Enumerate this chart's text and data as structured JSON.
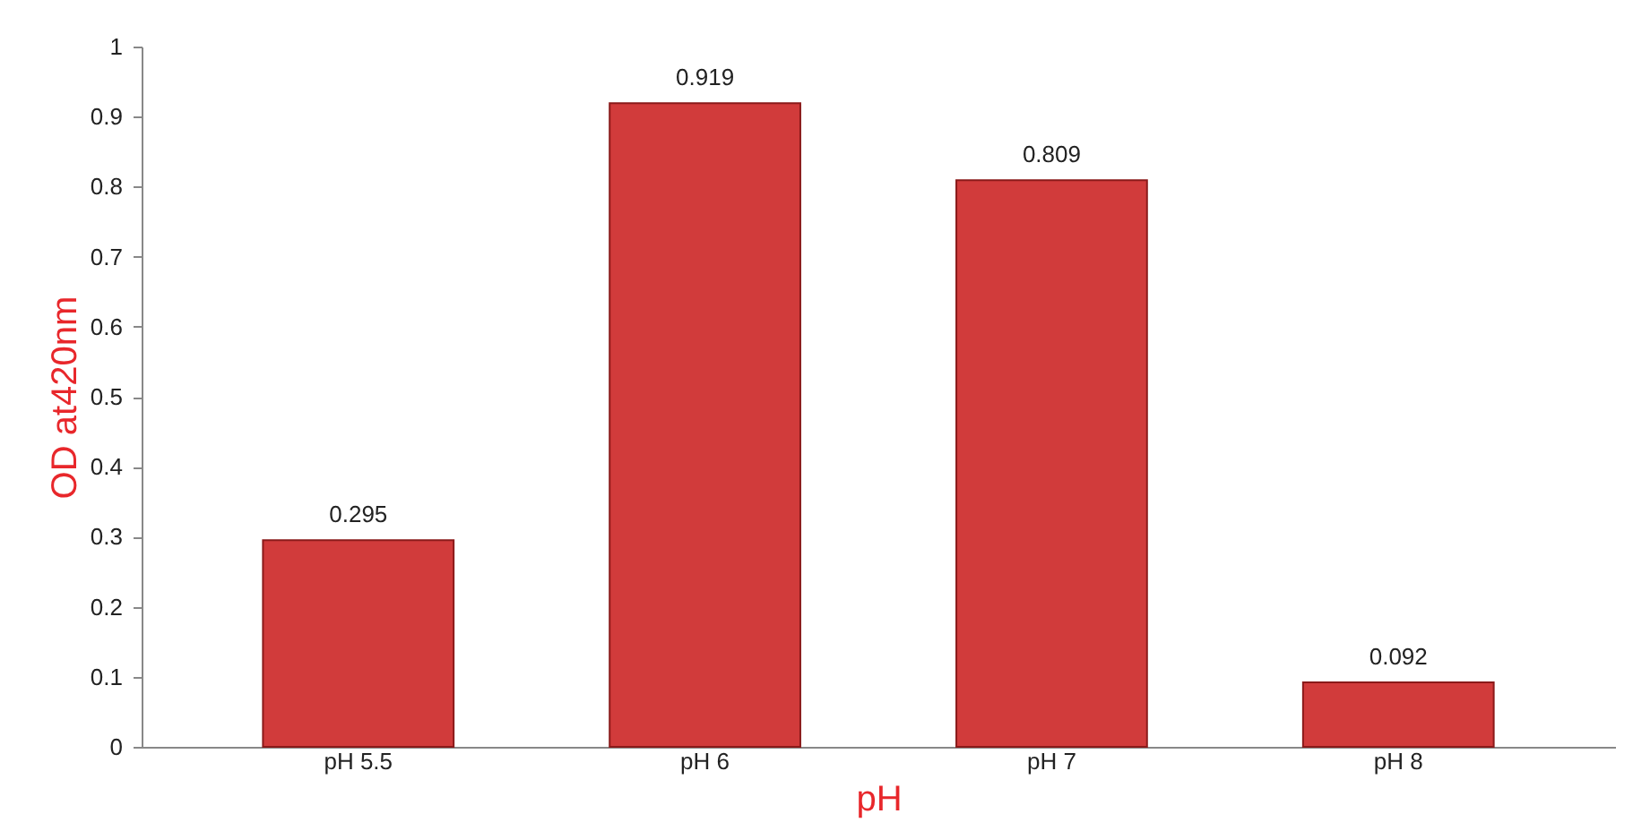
{
  "chart_data": {
    "type": "bar",
    "xlabel": "pH",
    "ylabel": "OD at420nm",
    "categories": [
      "pH 5.5",
      "pH 6",
      "pH 7",
      "pH 8"
    ],
    "values": [
      0.295,
      0.919,
      0.809,
      0.092
    ],
    "color": "#d13b3b",
    "ylim": [
      0,
      1
    ],
    "yticks": [
      0,
      0.1,
      0.2,
      0.3,
      0.4,
      0.5,
      0.6,
      0.7,
      0.8,
      0.9,
      1
    ],
    "grid": false,
    "data_labels": true
  }
}
